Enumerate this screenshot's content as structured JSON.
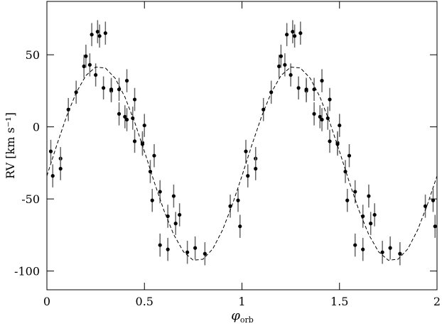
{
  "chart_data": {
    "type": "scatter",
    "x_label": {
      "symbol": "φ",
      "subscript": "orb"
    },
    "y_label": "RV [km s⁻¹]",
    "xlim": [
      0,
      2
    ],
    "ylim": [
      -113,
      87
    ],
    "xticks": [
      0,
      0.5,
      1,
      1.5,
      2
    ],
    "yticks": [
      -100,
      -50,
      0,
      50
    ],
    "series": [
      {
        "color": "#000000",
        "x": [
          0.02,
          0.03,
          0.07,
          0.07,
          0.11,
          0.15,
          0.19,
          0.2,
          0.22,
          0.23,
          0.25,
          0.26,
          0.27,
          0.29,
          0.3,
          0.33,
          0.33,
          0.37,
          0.37,
          0.41,
          0.4,
          0.41,
          0.44,
          0.45,
          0.45,
          0.49,
          0.49,
          0.5,
          0.53,
          0.54,
          0.55,
          0.58,
          0.58,
          0.62,
          0.62,
          0.65,
          0.66,
          0.68,
          0.72,
          0.76,
          0.81,
          0.94,
          0.98,
          0.99,
          1.02,
          1.03,
          1.07,
          1.07,
          1.11,
          1.15,
          1.19,
          1.2,
          1.22,
          1.23,
          1.25,
          1.26,
          1.27,
          1.29,
          1.3,
          1.33,
          1.33,
          1.37,
          1.37,
          1.41,
          1.4,
          1.41,
          1.44,
          1.45,
          1.45,
          1.49,
          1.49,
          1.5,
          1.53,
          1.54,
          1.55,
          1.58,
          1.58,
          1.62,
          1.62,
          1.65,
          1.66,
          1.68,
          1.72,
          1.76,
          1.81,
          1.94,
          1.98,
          1.99
        ],
        "values": [
          -17,
          -34,
          -22,
          -29,
          12,
          24,
          42,
          49,
          43,
          64,
          36,
          66,
          63,
          27,
          65,
          25,
          26,
          9,
          26,
          32,
          7,
          5,
          6,
          19,
          -10,
          -11,
          -12,
          1,
          -31,
          -51,
          -20,
          -45,
          -82,
          -62,
          -85,
          -48,
          -67,
          -61,
          -87,
          -84,
          -88,
          -55,
          -51,
          -69,
          -17,
          -34,
          -22,
          -29,
          12,
          24,
          42,
          49,
          43,
          64,
          36,
          66,
          63,
          27,
          65,
          25,
          26,
          9,
          26,
          32,
          7,
          5,
          6,
          19,
          -10,
          -11,
          -12,
          1,
          -31,
          -51,
          -20,
          -45,
          -82,
          -62,
          -85,
          -48,
          -67,
          -61,
          -87,
          -84,
          -88,
          -55,
          -51,
          -69
        ],
        "errors": [
          8,
          8,
          8,
          8,
          8,
          8,
          8,
          8,
          8,
          8,
          8,
          8,
          8,
          8,
          8,
          8,
          8,
          8,
          8,
          8,
          8,
          8,
          8,
          8,
          8,
          8,
          8,
          8,
          8,
          8,
          8,
          8,
          8,
          8,
          8,
          8,
          8,
          8,
          8,
          8,
          8,
          8,
          8,
          8,
          8,
          8,
          8,
          8,
          8,
          8,
          8,
          8,
          8,
          8,
          8,
          8,
          8,
          8,
          8,
          8,
          8,
          8,
          8,
          8,
          8,
          8,
          8,
          8,
          8,
          8,
          8,
          8,
          8,
          8,
          8,
          8,
          8,
          8,
          8,
          8,
          8,
          8,
          8,
          8,
          8,
          8,
          8,
          8
        ]
      },
      {
        "color": "#000000",
        "style": "dashed",
        "x": [
          0,
          0.05,
          0.1,
          0.15,
          0.2,
          0.25,
          0.3,
          0.35,
          0.4,
          0.45,
          0.5,
          0.55,
          0.6,
          0.65,
          0.7,
          0.75,
          0.8,
          0.85,
          0.9,
          0.95,
          1,
          1.05,
          1.1,
          1.15,
          1.2,
          1.25,
          1.3,
          1.35,
          1.4,
          1.45,
          1.5,
          1.55,
          1.6,
          1.65,
          1.7,
          1.75,
          1.8,
          1.85,
          1.9,
          1.95,
          2
        ],
        "values": [
          -34,
          -12.9,
          7,
          23.7,
          35.6,
          41.5,
          40.8,
          33.7,
          20.7,
          3.2,
          -17,
          -38.2,
          -58,
          -74.7,
          -86.6,
          -92.5,
          -91.8,
          -84.7,
          -71.7,
          -54.2,
          -34,
          -12.9,
          7,
          23.7,
          35.6,
          41.5,
          40.8,
          33.7,
          20.7,
          3.2,
          -17,
          -38.2,
          -58,
          -74.7,
          -86.6,
          -92.5,
          -91.8,
          -84.7,
          -71.7,
          -54.2,
          -34
        ]
      }
    ]
  }
}
